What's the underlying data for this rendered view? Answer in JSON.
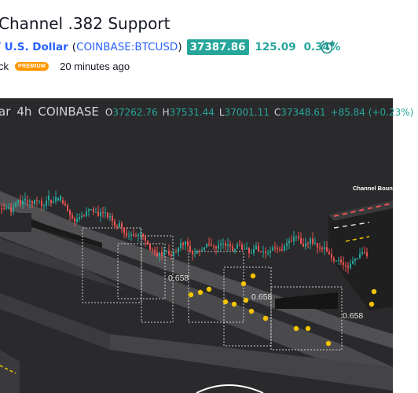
{
  "idea": {
    "title": "Channel .382 Support",
    "pair_name": "/ U.S. Dollar",
    "exchange_open": "(",
    "exchange_symbol": "COINBASE:BTCUSD",
    "exchange_close": ")",
    "price": "37387.86",
    "change": "125.09",
    "change_percent": "0.34%",
    "author": "ck",
    "badge": "PREMIUM",
    "posted": "20 minutes ago",
    "alert_icon": "alarm-clock-plus-icon"
  },
  "chart": {
    "symbol_tail": "ar",
    "interval": "4h",
    "exchange": "COINBASE",
    "open_label": "O",
    "open": "37262.76",
    "high_label": "H",
    "high": "37531.44",
    "low_label": "L",
    "low": "37001.11",
    "close_label": "C",
    "close": "37348.61",
    "change": "+85.84 (+0.23%)",
    "annotation": "Channel Boun",
    "fib_labels": [
      "0.658",
      "0.658",
      "0.658"
    ],
    "colors": {
      "up": "#26a69a",
      "down": "#ef5350",
      "background": "#2a2a2c",
      "marker": "#f5c400"
    }
  }
}
